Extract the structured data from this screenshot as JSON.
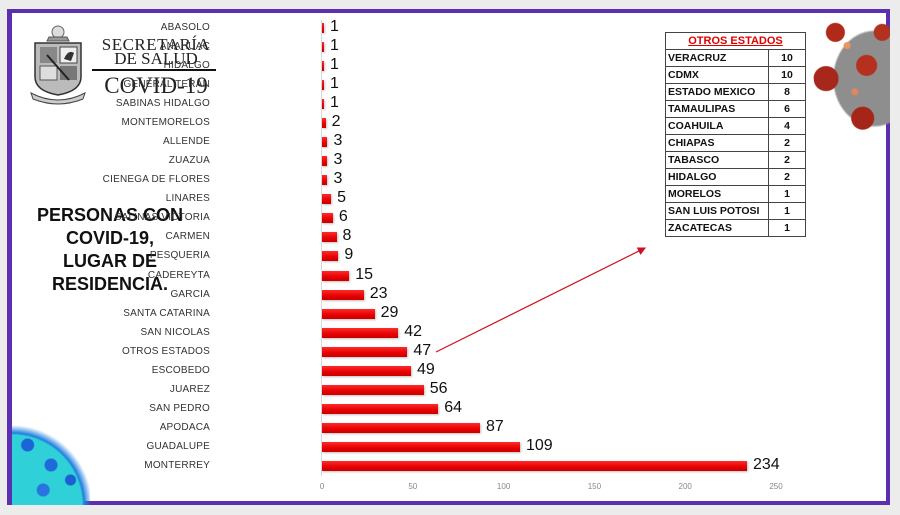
{
  "header": {
    "logo_line1": "SECRETARÍA",
    "logo_line2": "DE SALUD",
    "logo_line3": "COVID-19"
  },
  "headline": {
    "lines": [
      "PERSONAS CON",
      "COVID-19,",
      "LUGAR DE",
      "RESIDENCIA."
    ]
  },
  "colors": {
    "bar": "#e60000",
    "frame": "#5b2fb0",
    "table_header": "#e00000",
    "arrow": "#d01020"
  },
  "chart_data": {
    "type": "bar",
    "orientation": "horizontal",
    "title": "PERSONAS CON COVID-19, LUGAR DE RESIDENCIA.",
    "xlabel": "",
    "ylabel": "",
    "xlim": [
      0,
      250
    ],
    "ticks": [
      "0",
      "50",
      "100",
      "150",
      "200",
      "250"
    ],
    "grid": false,
    "data_labels": true,
    "categories": [
      "ABASOLO",
      "ANAHUAC",
      "HIDALGO",
      "GENERAL TERAN",
      "SABINAS HIDALGO",
      "MONTEMORELOS",
      "ALLENDE",
      "ZUAZUA",
      "CIENEGA DE FLORES",
      "LINARES",
      "SALINAS VICTORIA",
      "CARMEN",
      "PESQUERIA",
      "CADEREYTA",
      "GARCIA",
      "SANTA CATARINA",
      "SAN NICOLAS",
      "OTROS ESTADOS",
      "ESCOBEDO",
      "JUAREZ",
      "SAN PEDRO",
      "APODACA",
      "GUADALUPE",
      "MONTERREY"
    ],
    "values": [
      1,
      1,
      1,
      1,
      1,
      2,
      3,
      3,
      3,
      5,
      6,
      8,
      9,
      15,
      23,
      29,
      42,
      47,
      49,
      56,
      64,
      87,
      109,
      234
    ]
  },
  "otros_estados_table": {
    "title": "OTROS ESTADOS",
    "rows": [
      {
        "state": "VERACRUZ",
        "count": "10"
      },
      {
        "state": "CDMX",
        "count": "10"
      },
      {
        "state": "ESTADO MEXICO",
        "count": "8"
      },
      {
        "state": "TAMAULIPAS",
        "count": "6"
      },
      {
        "state": "COAHUILA",
        "count": "4"
      },
      {
        "state": "CHIAPAS",
        "count": "2"
      },
      {
        "state": "TABASCO",
        "count": "2"
      },
      {
        "state": "HIDALGO",
        "count": "2"
      },
      {
        "state": "MORELOS",
        "count": "1"
      },
      {
        "state": "SAN LUIS POTOSI",
        "count": "1"
      },
      {
        "state": "ZACATECAS",
        "count": "1"
      }
    ]
  }
}
